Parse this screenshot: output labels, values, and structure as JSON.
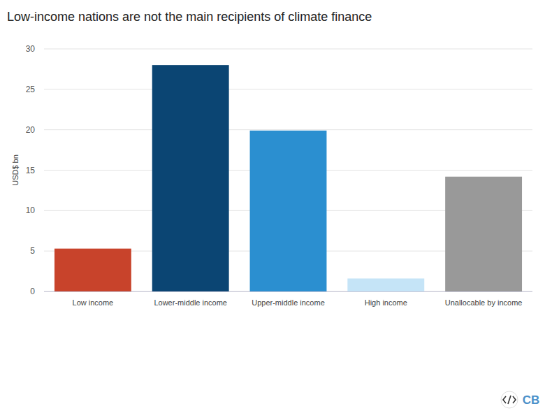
{
  "chart_data": {
    "type": "bar",
    "title": "Low-income nations are not the main recipients of climate finance",
    "y_label": "USD$ bn",
    "categories": [
      "Low income",
      "Lower-middle income",
      "Upper-middle income",
      "High income",
      "Unallocable by income"
    ],
    "values": [
      5.3,
      28.0,
      19.9,
      1.6,
      14.2
    ],
    "colors": [
      "#c8432b",
      "#0b4573",
      "#2b8fd0",
      "#c5e4f7",
      "#999999"
    ],
    "ylim": [
      0,
      30
    ],
    "yticks": [
      0,
      5,
      10,
      15,
      20,
      25,
      30
    ],
    "grid": true,
    "annotations": [
      "CB"
    ]
  }
}
